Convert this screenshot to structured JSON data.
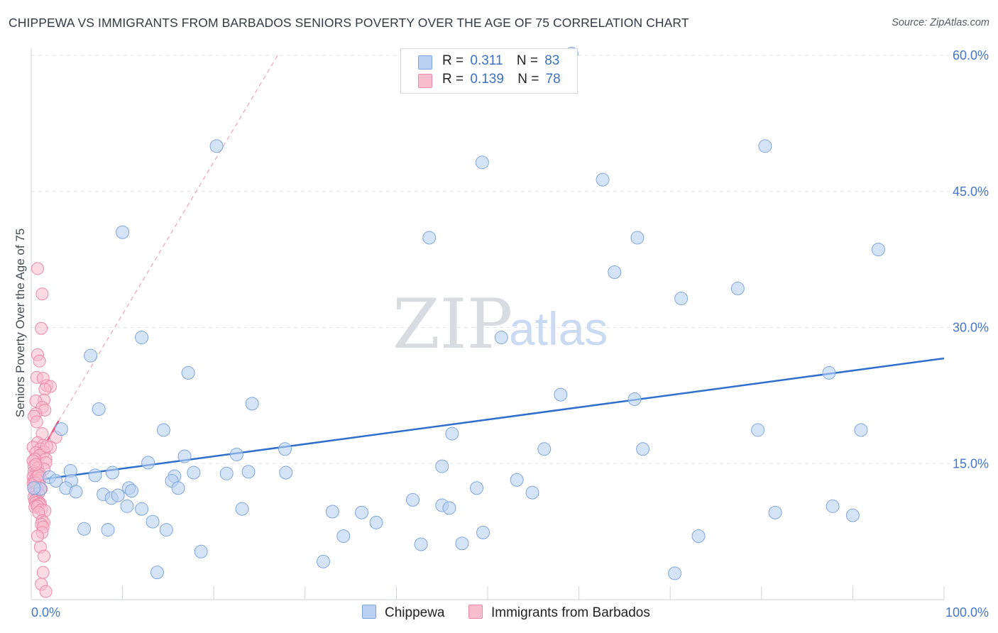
{
  "title": "CHIPPEWA VS IMMIGRANTS FROM BARBADOS SENIORS POVERTY OVER THE AGE OF 75 CORRELATION CHART",
  "source": "Source: ZipAtlas.com",
  "watermark": {
    "zip": "ZIP",
    "atlas": "atlas"
  },
  "legend": {
    "rows": [
      {
        "r_label": "R =",
        "r_value": "0.311",
        "n_label": "N =",
        "n_value": "83"
      },
      {
        "r_label": "R =",
        "r_value": "0.139",
        "n_label": "N =",
        "n_value": "78"
      }
    ]
  },
  "bottom_legend": [
    "Chippewa",
    "Immigrants from Barbados"
  ],
  "colors": {
    "blue_fill": "#b9d0f1",
    "blue_stroke": "#7ea6dd",
    "blue_line": "#2e6fcc",
    "pink_fill": "#f7bccd",
    "pink_stroke": "#ec8aa8",
    "pink_line": "#e8507f",
    "grid": "#e2e5ea",
    "axis_text": "#4477cc"
  },
  "chart_data": {
    "type": "scatter",
    "title": "CHIPPEWA VS IMMIGRANTS FROM BARBADOS SENIORS POVERTY OVER THE AGE OF 75 CORRELATION CHART",
    "xlabel": "",
    "ylabel": "Seniors Poverty Over the Age of 75",
    "xlim": [
      0,
      100
    ],
    "ylim": [
      0,
      60
    ],
    "x_tick_labels": [
      "0.0%",
      "100.0%"
    ],
    "y_ticks": [
      15,
      30,
      45,
      60
    ],
    "y_tick_labels": [
      "15.0%",
      "30.0%",
      "45.0%",
      "60.0%"
    ],
    "grid": true,
    "series": [
      {
        "name": "Chippewa",
        "R": 0.311,
        "N": 83,
        "trend": {
          "x": [
            0,
            100
          ],
          "y": [
            13.1,
            26.6
          ]
        },
        "points": [
          [
            59.2,
            60.2
          ],
          [
            20.3,
            50.0
          ],
          [
            49.4,
            48.2
          ],
          [
            80.4,
            50.0
          ],
          [
            62.6,
            46.3
          ],
          [
            10.0,
            40.5
          ],
          [
            43.6,
            39.9
          ],
          [
            66.4,
            39.9
          ],
          [
            92.8,
            38.6
          ],
          [
            63.9,
            36.1
          ],
          [
            77.4,
            34.3
          ],
          [
            71.2,
            33.2
          ],
          [
            12.1,
            28.9
          ],
          [
            51.5,
            28.9
          ],
          [
            6.5,
            26.9
          ],
          [
            17.2,
            25.0
          ],
          [
            87.4,
            25.0
          ],
          [
            58.0,
            22.6
          ],
          [
            66.1,
            22.1
          ],
          [
            24.2,
            21.6
          ],
          [
            7.4,
            21.0
          ],
          [
            3.3,
            18.8
          ],
          [
            14.5,
            18.7
          ],
          [
            46.1,
            18.3
          ],
          [
            79.6,
            18.7
          ],
          [
            90.9,
            18.7
          ],
          [
            27.8,
            16.6
          ],
          [
            56.2,
            16.6
          ],
          [
            67.0,
            16.6
          ],
          [
            16.8,
            15.8
          ],
          [
            22.5,
            16.0
          ],
          [
            12.8,
            15.1
          ],
          [
            45.0,
            14.7
          ],
          [
            4.3,
            14.2
          ],
          [
            8.9,
            14.0
          ],
          [
            17.8,
            14.0
          ],
          [
            21.4,
            13.9
          ],
          [
            23.8,
            14.1
          ],
          [
            27.9,
            14.0
          ],
          [
            2.0,
            13.5
          ],
          [
            7.0,
            13.7
          ],
          [
            15.7,
            13.6
          ],
          [
            2.7,
            13.1
          ],
          [
            4.4,
            13.1
          ],
          [
            15.4,
            13.1
          ],
          [
            53.2,
            13.2
          ],
          [
            1.0,
            12.2
          ],
          [
            3.8,
            12.3
          ],
          [
            10.7,
            12.3
          ],
          [
            16.1,
            12.3
          ],
          [
            48.8,
            12.3
          ],
          [
            54.9,
            11.8
          ],
          [
            4.9,
            11.9
          ],
          [
            7.9,
            11.6
          ],
          [
            8.8,
            11.2
          ],
          [
            9.5,
            11.5
          ],
          [
            41.8,
            11.0
          ],
          [
            10.5,
            10.3
          ],
          [
            12.1,
            10.0
          ],
          [
            45.0,
            10.4
          ],
          [
            45.8,
            10.1
          ],
          [
            23.1,
            10.0
          ],
          [
            33.0,
            9.7
          ],
          [
            36.2,
            9.6
          ],
          [
            81.5,
            9.6
          ],
          [
            87.8,
            10.3
          ],
          [
            90.0,
            9.3
          ],
          [
            13.3,
            8.6
          ],
          [
            37.8,
            8.5
          ],
          [
            5.8,
            7.8
          ],
          [
            8.4,
            7.7
          ],
          [
            14.8,
            7.7
          ],
          [
            49.5,
            7.4
          ],
          [
            34.2,
            7.0
          ],
          [
            73.1,
            7.0
          ],
          [
            42.7,
            6.1
          ],
          [
            47.2,
            6.2
          ],
          [
            18.6,
            5.3
          ],
          [
            32.0,
            4.2
          ],
          [
            13.8,
            3.0
          ],
          [
            70.5,
            2.9
          ],
          [
            0.3,
            12.3
          ],
          [
            11.0,
            12.0
          ]
        ]
      },
      {
        "name": "Immigrants from Barbados",
        "R": 0.139,
        "N": 78,
        "trend": {
          "x": [
            0,
            3.0
          ],
          "y": [
            14.4,
            19.7
          ]
        },
        "trend_extended": {
          "x": [
            3.0,
            27.0
          ],
          "y": [
            19.7,
            60.0
          ]
        },
        "points": [
          [
            0.7,
            36.5
          ],
          [
            1.2,
            33.7
          ],
          [
            1.1,
            29.9
          ],
          [
            0.7,
            27.0
          ],
          [
            0.9,
            26.3
          ],
          [
            0.6,
            24.5
          ],
          [
            1.3,
            24.4
          ],
          [
            1.7,
            23.6
          ],
          [
            2.1,
            23.5
          ],
          [
            1.5,
            23.2
          ],
          [
            1.4,
            22.0
          ],
          [
            0.5,
            21.9
          ],
          [
            1.2,
            21.2
          ],
          [
            1.5,
            20.9
          ],
          [
            0.5,
            20.5
          ],
          [
            0.3,
            20.2
          ],
          [
            0.6,
            19.6
          ],
          [
            1.2,
            18.3
          ],
          [
            2.7,
            17.9
          ],
          [
            0.7,
            17.3
          ],
          [
            1.3,
            17.0
          ],
          [
            0.2,
            16.8
          ],
          [
            1.0,
            16.6
          ],
          [
            2.1,
            16.8
          ],
          [
            0.5,
            16.2
          ],
          [
            1.4,
            16.3
          ],
          [
            0.9,
            15.9
          ],
          [
            0.4,
            15.5
          ],
          [
            1.6,
            15.5
          ],
          [
            0.2,
            15.3
          ],
          [
            1.6,
            15.1
          ],
          [
            0.3,
            14.7
          ],
          [
            0.7,
            14.5
          ],
          [
            1.4,
            14.4
          ],
          [
            0.3,
            14.1
          ],
          [
            0.5,
            13.9
          ],
          [
            0.9,
            13.9
          ],
          [
            0.2,
            13.5
          ],
          [
            0.6,
            13.5
          ],
          [
            1.0,
            13.4
          ],
          [
            0.3,
            13.1
          ],
          [
            0.7,
            13.1
          ],
          [
            0.2,
            12.8
          ],
          [
            0.5,
            12.8
          ],
          [
            0.9,
            12.6
          ],
          [
            0.3,
            12.4
          ],
          [
            0.6,
            12.3
          ],
          [
            1.1,
            12.2
          ],
          [
            0.4,
            11.9
          ],
          [
            0.8,
            11.7
          ],
          [
            0.3,
            11.3
          ],
          [
            0.6,
            11.1
          ],
          [
            0.4,
            10.9
          ],
          [
            0.8,
            10.8
          ],
          [
            0.5,
            10.7
          ],
          [
            1.0,
            10.6
          ],
          [
            0.6,
            10.4
          ],
          [
            0.9,
            10.5
          ],
          [
            0.4,
            10.2
          ],
          [
            0.7,
            10.3
          ],
          [
            1.1,
            9.9
          ],
          [
            1.5,
            9.8
          ],
          [
            0.8,
            9.6
          ],
          [
            1.2,
            8.7
          ],
          [
            1.4,
            8.5
          ],
          [
            1.1,
            8.3
          ],
          [
            1.3,
            8.0
          ],
          [
            1.2,
            7.4
          ],
          [
            0.7,
            7.0
          ],
          [
            1.0,
            5.8
          ],
          [
            1.4,
            4.8
          ],
          [
            1.3,
            3.0
          ],
          [
            1.1,
            1.7
          ],
          [
            1.6,
            0.9
          ],
          [
            0.4,
            12.9
          ],
          [
            0.8,
            13.7
          ],
          [
            1.7,
            16.9
          ],
          [
            0.5,
            14.9
          ]
        ]
      }
    ]
  }
}
